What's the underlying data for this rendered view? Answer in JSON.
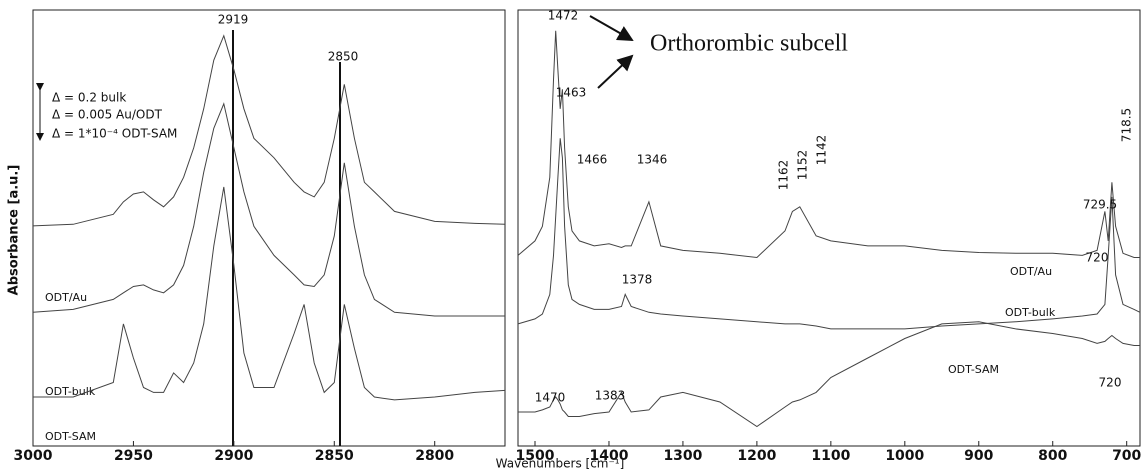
{
  "chart_data": [
    {
      "type": "line",
      "xlabel": "Wavenumbers [cm⁻¹]",
      "ylabel": "Absorbance [a.u.]",
      "xlim": [
        3000,
        2765
      ],
      "ylim": [
        0,
        105
      ],
      "xticks": [
        3000,
        2950,
        2900,
        2850,
        2800
      ],
      "x": [
        3000,
        2980,
        2960,
        2955,
        2950,
        2945,
        2940,
        2935,
        2930,
        2925,
        2920,
        2915,
        2910,
        2905,
        2900,
        2895,
        2890,
        2880,
        2870,
        2865,
        2860,
        2855,
        2850,
        2845,
        2840,
        2835,
        2830,
        2820,
        2800,
        2780,
        2765
      ],
      "series": [
        {
          "name": "ODT/Au",
          "color": "#444444",
          "values": [
            53,
            53.4,
            55.8,
            58.8,
            60.7,
            61.2,
            59.3,
            57.6,
            60,
            64.7,
            71.8,
            81.2,
            92.9,
            98.8,
            90.6,
            81.2,
            74.1,
            69.4,
            63.5,
            61.2,
            60,
            63.5,
            74.1,
            87.1,
            74.1,
            63.5,
            61.2,
            56.5,
            54.1,
            53.6,
            53.4
          ]
        },
        {
          "name": "ODT-bulk",
          "color": "#444444",
          "values": [
            32.2,
            32.9,
            35.3,
            36.9,
            38.4,
            38.8,
            37.6,
            36.9,
            38.8,
            43.5,
            52.9,
            65.9,
            76.5,
            82.4,
            71.8,
            61.2,
            52.9,
            45.9,
            41.2,
            38.8,
            38.4,
            41.2,
            50.6,
            68.2,
            52.9,
            41.2,
            35.3,
            32.2,
            31.3,
            31.3,
            31.3
          ]
        },
        {
          "name": "ODT-SAM",
          "color": "#444444",
          "values": [
            11.8,
            11.8,
            15.3,
            29.4,
            21.2,
            14.1,
            12.9,
            12.9,
            17.6,
            15.3,
            20,
            29.4,
            48.2,
            62.4,
            43.5,
            22.4,
            14.1,
            14.1,
            27.1,
            34.1,
            20,
            12.9,
            15.3,
            34.1,
            23.5,
            14.1,
            11.8,
            11.1,
            11.8,
            12.9,
            13.4
          ]
        }
      ],
      "annotations": [
        "2919",
        "2850",
        "Δ = 0.2 bulk",
        "Δ = 0.005 Au/ODT",
        "Δ = 1*10⁻⁴ ODT-SAM"
      ]
    },
    {
      "type": "line",
      "xlim": [
        1523,
        682
      ],
      "ylim": [
        0,
        105
      ],
      "xticks": [
        1500,
        1400,
        1300,
        1200,
        1100,
        1000,
        900,
        800,
        700
      ],
      "x": [
        1523,
        1500,
        1490,
        1480,
        1475,
        1472,
        1469,
        1466,
        1463,
        1460,
        1455,
        1450,
        1440,
        1420,
        1400,
        1383,
        1378,
        1370,
        1346,
        1330,
        1300,
        1250,
        1200,
        1162,
        1152,
        1142,
        1120,
        1100,
        1050,
        1000,
        950,
        900,
        850,
        800,
        760,
        740,
        729.5,
        725,
        720,
        715,
        705,
        690,
        682
      ],
      "series": [
        {
          "name": "ODT/Au",
          "color": "#444444",
          "values": [
            45.9,
            49.4,
            52.9,
            64.7,
            88.2,
            100,
            90.6,
            81.2,
            85.9,
            71.8,
            57.6,
            51.8,
            49.4,
            48.2,
            48.7,
            47.8,
            48.2,
            48.2,
            58.8,
            48.2,
            47.1,
            46.4,
            45.4,
            51.8,
            56.5,
            57.6,
            50.6,
            49.4,
            48.2,
            48.2,
            47.1,
            46.6,
            46.4,
            46.4,
            45.9,
            47.1,
            56.5,
            49.4,
            63.5,
            52.9,
            46.4,
            45.4,
            45.4
          ]
        },
        {
          "name": "ODT-bulk",
          "color": "#444444",
          "values": [
            29.4,
            30.6,
            31.8,
            36.5,
            45.9,
            55.3,
            64.7,
            74.1,
            69.4,
            52.9,
            38.8,
            35.3,
            34.1,
            32.9,
            32.9,
            33.6,
            36.5,
            33.6,
            32.2,
            31.8,
            31.3,
            30.6,
            29.9,
            29.4,
            29.4,
            29.4,
            28.9,
            28.2,
            28.2,
            28.2,
            28.9,
            29.4,
            29.9,
            30.6,
            31.3,
            31.8,
            34.1,
            45.9,
            60,
            41.2,
            34.1,
            32.9,
            32.2
          ]
        },
        {
          "name": "ODT-SAM",
          "color": "#444444",
          "values": [
            8.2,
            8.2,
            8.7,
            9.4,
            11.1,
            11.8,
            11.1,
            10.1,
            8.7,
            8.2,
            7.1,
            7.1,
            7.1,
            7.8,
            8.2,
            12.9,
            10.6,
            8.2,
            8.7,
            11.8,
            12.9,
            10.6,
            4.7,
            9.4,
            10.6,
            11.1,
            12.9,
            16.5,
            21.2,
            25.9,
            29.4,
            29.9,
            28.2,
            27.1,
            25.9,
            24.7,
            25.2,
            25.9,
            26.6,
            25.9,
            24.7,
            24.2,
            24.2
          ]
        }
      ],
      "annotations": [
        "1472",
        "1463",
        "1466",
        "1346",
        "1162",
        "1152",
        "1142",
        "718.5",
        "729.5",
        "720",
        "1378",
        "1470",
        "1383",
        "720",
        "Orthorombic subcell"
      ]
    }
  ]
}
